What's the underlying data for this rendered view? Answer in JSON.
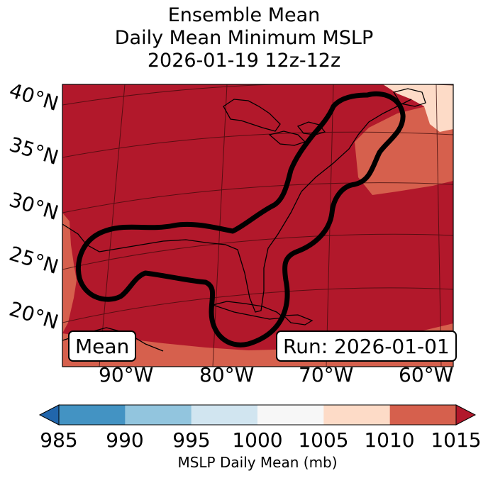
{
  "title": {
    "line1": "Ensemble Mean",
    "line2": "Daily Mean Minimum MSLP",
    "line3": "2026-01-19 12z-12z"
  },
  "map": {
    "latitude_labels": [
      "40°N",
      "35°N",
      "30°N",
      "25°N",
      "20°N"
    ],
    "longitude_labels": [
      "90°W",
      "80°W",
      "70°W",
      "60°W"
    ],
    "mean_label": "Mean",
    "run_label": "Run: 2026-01-01",
    "region": "Eastern United States and Gulf of Mexico",
    "contour_color": "#000000",
    "fill_colors": {
      "985-990": "#4393c3",
      "990-995": "#92c5de",
      "995-1000": "#d1e5f0",
      "1000-1005": "#f7f7f7",
      "1005-1010": "#fddbc7",
      "1010-1015": "#d6604d",
      "1015+": "#b2182b"
    }
  },
  "colorbar": {
    "ticks": [
      "985",
      "990",
      "995",
      "1000",
      "1005",
      "1010",
      "1015"
    ],
    "label": "MSLP Daily Mean (mb)",
    "under_color": "#2166ac",
    "over_color": "#b2182b",
    "colors": [
      "#4393c3",
      "#92c5de",
      "#d1e5f0",
      "#f7f7f7",
      "#fddbc7",
      "#d6604d"
    ]
  }
}
